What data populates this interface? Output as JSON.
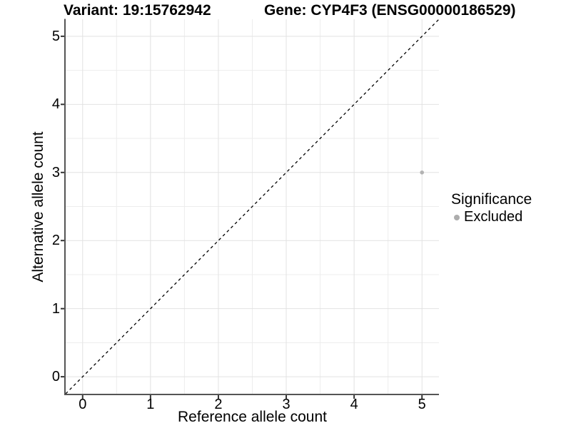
{
  "chart_data": {
    "type": "scatter",
    "title_left": "Variant: 19:15762942",
    "title_right": "Gene: CYP4F3 (ENSG00000186529)",
    "xlabel": "Reference allele count",
    "ylabel": "Alternative allele count",
    "xlim": [
      -0.25,
      5.25
    ],
    "ylim": [
      -0.25,
      5.25
    ],
    "x_ticks": [
      0,
      1,
      2,
      3,
      4,
      5
    ],
    "y_ticks": [
      0,
      1,
      2,
      3,
      4,
      5
    ],
    "grid": {
      "major_step": 1,
      "minor_step": 0.5,
      "major_color": "#e2e2e2",
      "minor_color": "#ededed"
    },
    "abline": {
      "slope": 1,
      "intercept": 0,
      "style": "dashed",
      "color": "#000000"
    },
    "points": [
      {
        "x": 5,
        "y": 3,
        "significance": "Excluded"
      }
    ],
    "legend": {
      "title": "Significance",
      "position": "right",
      "items": [
        {
          "label": "Excluded",
          "color": "#adadad"
        }
      ]
    },
    "colors": {
      "point": "#b3b3b3",
      "axis_line": "#555555",
      "tick_mark": "#333333",
      "text": "#000000",
      "background": "#ffffff"
    }
  }
}
